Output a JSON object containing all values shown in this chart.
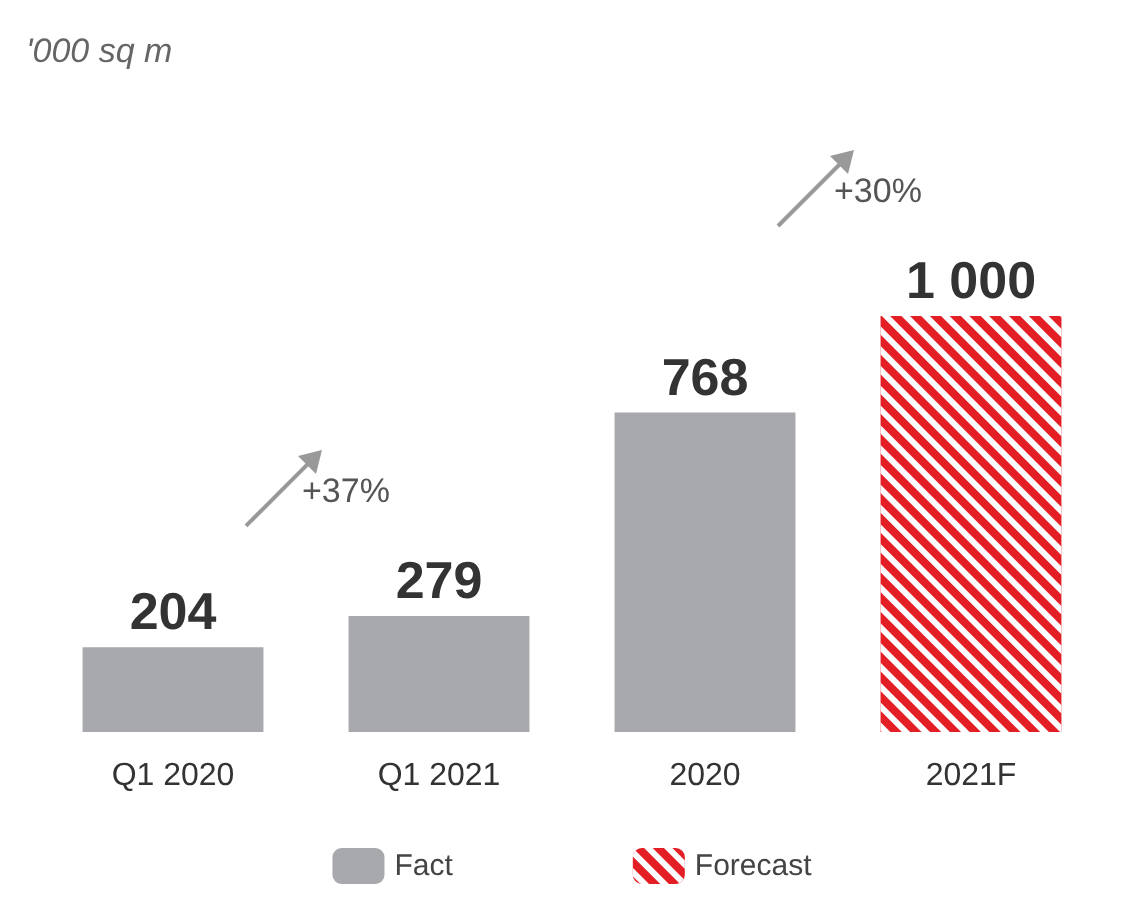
{
  "chart_data": {
    "type": "bar",
    "subtitle": "'000 sq m",
    "categories": [
      "Q1 2020",
      "Q1 2021",
      "2020",
      "2021F"
    ],
    "series": [
      {
        "name": "Fact",
        "color": "#a7a9ac",
        "values": [
          204,
          279,
          768,
          null
        ],
        "value_labels": [
          "204",
          "279",
          "768",
          null
        ]
      },
      {
        "name": "Forecast",
        "color": "#e31e24",
        "values": [
          null,
          null,
          null,
          1000
        ],
        "value_labels": [
          null,
          null,
          null,
          "1 000"
        ]
      }
    ],
    "legend": "bottom",
    "annotations": [
      "+37%",
      "+30%"
    ]
  }
}
